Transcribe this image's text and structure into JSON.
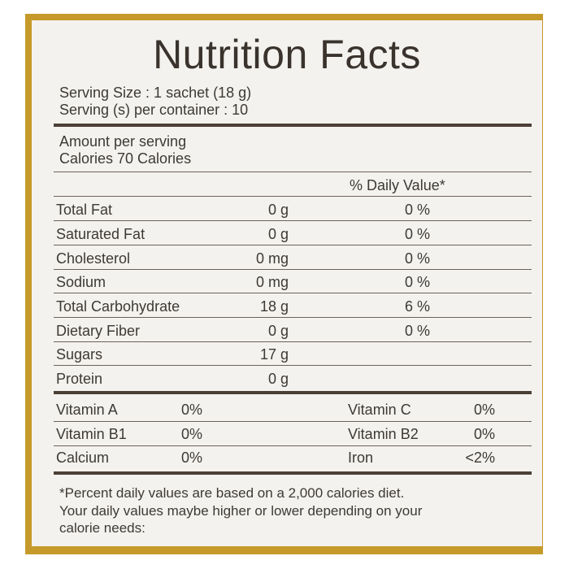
{
  "title": "Nutrition Facts",
  "serving": {
    "size": "Serving Size : 1 sachet (18 g)",
    "per_container": "Serving (s) per container : 10"
  },
  "amount_per_serving": "Amount per serving",
  "calories": "Calories  70 Calories",
  "dv_header": "% Daily Value*",
  "nutrients": [
    {
      "name": "Total Fat",
      "amount": "0 g",
      "dv": "0 %"
    },
    {
      "name": "Saturated Fat",
      "amount": "0 g",
      "dv": "0 %"
    },
    {
      "name": "Cholesterol",
      "amount": "0 mg",
      "dv": "0 %"
    },
    {
      "name": "Sodium",
      "amount": "0 mg",
      "dv": "0 %"
    },
    {
      "name": "Total Carbohydrate",
      "amount": "18 g",
      "dv": "6 %"
    },
    {
      "name": "Dietary Fiber",
      "amount": "0 g",
      "dv": "0 %"
    },
    {
      "name": "Sugars",
      "amount": "17 g",
      "dv": ""
    },
    {
      "name": "Protein",
      "amount": "0 g",
      "dv": ""
    }
  ],
  "vitamins": [
    {
      "left_name": "Vitamin A",
      "left_value": "0%",
      "right_name": "Vitamin C",
      "right_value": "0%"
    },
    {
      "left_name": "Vitamin B1",
      "left_value": "0%",
      "right_name": "Vitamin B2",
      "right_value": "0%"
    },
    {
      "left_name": "Calcium",
      "left_value": "0%",
      "right_name": "Iron",
      "right_value": "<2%"
    }
  ],
  "footnote": [
    "*Percent daily values are based on a 2,000 calories diet.",
    "Your daily values maybe higher or lower depending on your",
    "calorie needs:"
  ],
  "colors": {
    "border": "#c69a2a",
    "background": "#f4f2ee",
    "text": "#3d3a36",
    "rule": "#4a3f36"
  }
}
